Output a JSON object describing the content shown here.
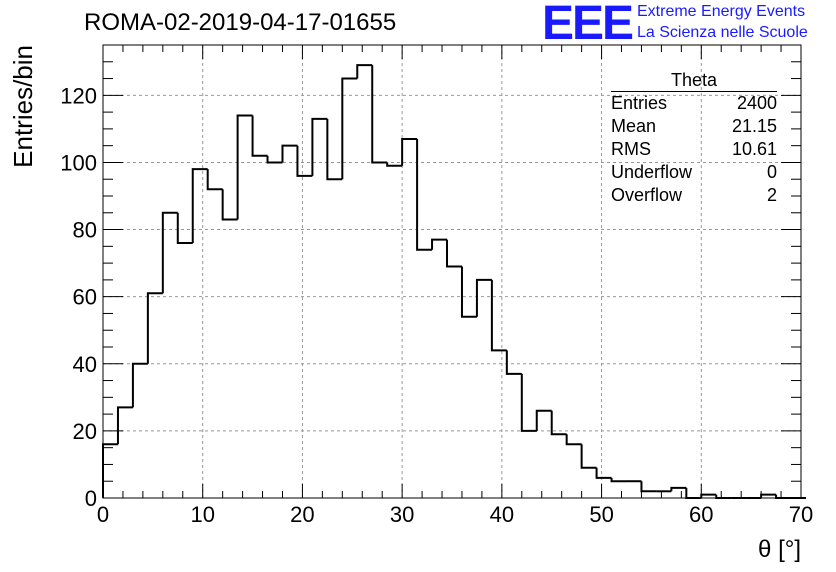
{
  "header": {
    "title": "ROMA-02-2019-04-17-01655",
    "logo_text": "EEE",
    "logo_line1": "Extreme Energy Events",
    "logo_line2": "La Scienza nelle Scuole",
    "logo_color": "#1a1aff"
  },
  "stats": {
    "name": "Theta",
    "rows": [
      {
        "label": "Entries",
        "value": "2400"
      },
      {
        "label": "Mean",
        "value": "21.15"
      },
      {
        "label": "RMS",
        "value": "10.61"
      },
      {
        "label": "Underflow",
        "value": "0"
      },
      {
        "label": "Overflow",
        "value": "2"
      }
    ]
  },
  "chart_data": {
    "type": "bar",
    "title": "ROMA-02-2019-04-17-01655",
    "xlabel": "θ [°]",
    "ylabel": "Entries/bin",
    "xlim": [
      0,
      70
    ],
    "ylim": [
      0,
      135
    ],
    "bin_width": 1.5,
    "grid": true,
    "x_ticks": [
      0,
      10,
      20,
      30,
      40,
      50,
      60,
      70
    ],
    "y_ticks": [
      0,
      20,
      40,
      60,
      80,
      100,
      120
    ],
    "values": [
      16,
      27,
      40,
      61,
      85,
      76,
      98,
      92,
      83,
      114,
      102,
      100,
      105,
      96,
      113,
      95,
      125,
      129,
      100,
      99,
      107,
      74,
      77,
      69,
      54,
      65,
      44,
      37,
      20,
      26,
      19,
      16,
      9,
      6,
      5,
      5,
      2,
      2,
      3,
      0,
      1,
      0,
      0,
      0,
      1,
      0,
      0
    ]
  }
}
